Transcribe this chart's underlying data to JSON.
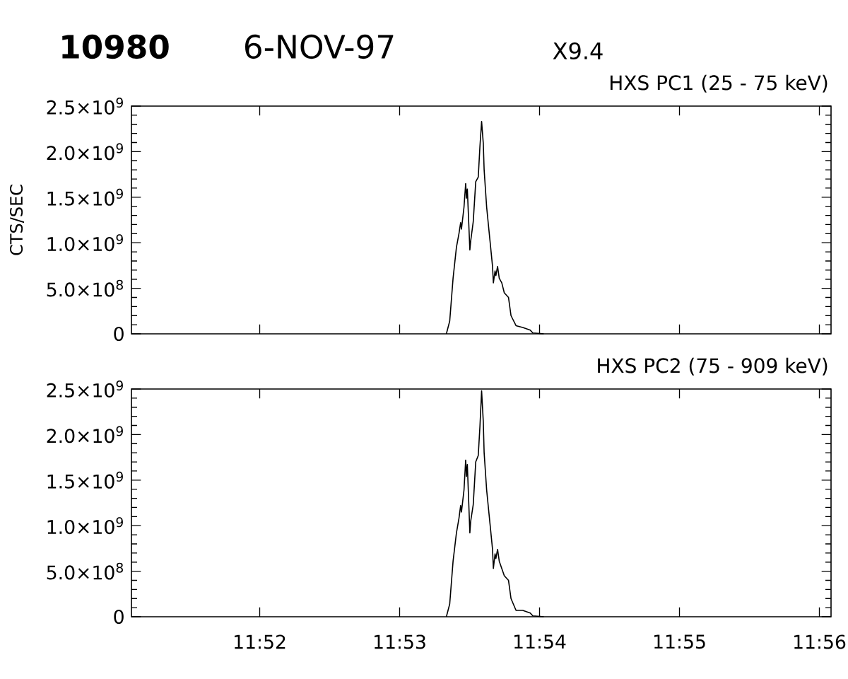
{
  "chart_data": [
    {
      "type": "line",
      "annotations": [
        "10980",
        "6-NOV-97",
        "X9.4"
      ],
      "title": "HXS PC1 (25 - 75 keV)",
      "ylabel": "CTS/SEC",
      "color": "#000000",
      "tick_labels": "y",
      "x": [
        11.8889,
        11.8893,
        11.8897,
        11.8901,
        11.8904,
        11.8906,
        11.8907,
        11.891,
        11.8912,
        11.8913,
        11.8914,
        11.8917,
        11.8918,
        11.8921,
        11.8924,
        11.8927,
        11.8929,
        11.8931,
        11.8933,
        11.8934,
        11.8937,
        11.8941,
        11.8944,
        11.8945,
        11.8947,
        11.8948,
        11.895,
        11.8952,
        11.8955,
        11.8958,
        11.8963,
        11.8966,
        11.8972,
        11.898,
        11.8989,
        11.8992,
        11.9005
      ],
      "values": [
        0,
        140000000,
        610000000,
        950000000,
        1100000000,
        1220000000,
        1150000000,
        1390000000,
        1650000000,
        1490000000,
        1590000000,
        920000000,
        1020000000,
        1230000000,
        1670000000,
        1720000000,
        2060000000,
        2330000000,
        2090000000,
        1800000000,
        1390000000,
        1020000000,
        740000000,
        560000000,
        690000000,
        640000000,
        740000000,
        610000000,
        560000000,
        450000000,
        400000000,
        200000000,
        90000000,
        70000000,
        40000000,
        10000000,
        0
      ],
      "xlim": [
        11.851389,
        11.934722
      ],
      "ylim": [
        0,
        2500000000
      ],
      "xticks": [
        {
          "value": 11.866667,
          "label": null
        },
        {
          "value": 11.883333,
          "label": null
        },
        {
          "value": 11.9,
          "label": null
        },
        {
          "value": 11.916667,
          "label": null
        },
        {
          "value": 11.933333,
          "label": null
        }
      ],
      "yticks": [
        0,
        {
          "value": 500000000,
          "label": "5.0×10$^{8}$"
        },
        {
          "value": 1000000000,
          "label": "1.0×10$^{9}$"
        },
        {
          "value": 1500000000,
          "label": "1.5×10$^{9}$"
        },
        {
          "value": 2000000000,
          "label": "2.0×10$^{9}$"
        },
        {
          "value": 2500000000,
          "label": "2.5×10$^{9}$"
        }
      ]
    },
    {
      "type": "line",
      "title": "HXS PC2 (75 - 909 keV)",
      "color": "#000000",
      "x": [
        11.8889,
        11.8893,
        11.8897,
        11.8901,
        11.8904,
        11.8906,
        11.8907,
        11.891,
        11.8912,
        11.8913,
        11.8914,
        11.8917,
        11.8918,
        11.8921,
        11.8924,
        11.8927,
        11.8929,
        11.8931,
        11.8933,
        11.8934,
        11.8937,
        11.8941,
        11.8944,
        11.8945,
        11.8947,
        11.8948,
        11.895,
        11.8952,
        11.8955,
        11.8958,
        11.8963,
        11.8966,
        11.8972,
        11.898,
        11.8989,
        11.8992,
        11.9005
      ],
      "values": [
        0,
        140000000,
        610000000,
        920000000,
        1080000000,
        1220000000,
        1150000000,
        1390000000,
        1720000000,
        1540000000,
        1670000000,
        920000000,
        1050000000,
        1230000000,
        1700000000,
        1770000000,
        2090000000,
        2480000000,
        2140000000,
        1800000000,
        1390000000,
        1020000000,
        740000000,
        530000000,
        690000000,
        640000000,
        740000000,
        610000000,
        530000000,
        450000000,
        400000000,
        200000000,
        70000000,
        70000000,
        40000000,
        10000000,
        0
      ],
      "xlim": [
        11.851389,
        11.934722
      ],
      "ylim": [
        0,
        2500000000
      ],
      "xticks": [
        {
          "value": 11.866667,
          "label": "11:52"
        },
        {
          "value": 11.883333,
          "label": "11:53"
        },
        {
          "value": 11.9,
          "label": "11:54"
        },
        {
          "value": 11.916667,
          "label": "11:55"
        },
        {
          "value": 11.933333,
          "label": "11:56"
        }
      ],
      "yticks": [
        0,
        {
          "value": 500000000,
          "label": "5.0×10$^{8}$"
        },
        {
          "value": 1000000000,
          "label": "1.0×10$^{9}$"
        },
        {
          "value": 1500000000,
          "label": "1.5×10$^{9}$"
        },
        {
          "value": 2000000000,
          "label": "2.0×10$^{9}$"
        },
        {
          "value": 2500000000,
          "label": "2.5×10$^{9}$"
        }
      ]
    }
  ]
}
